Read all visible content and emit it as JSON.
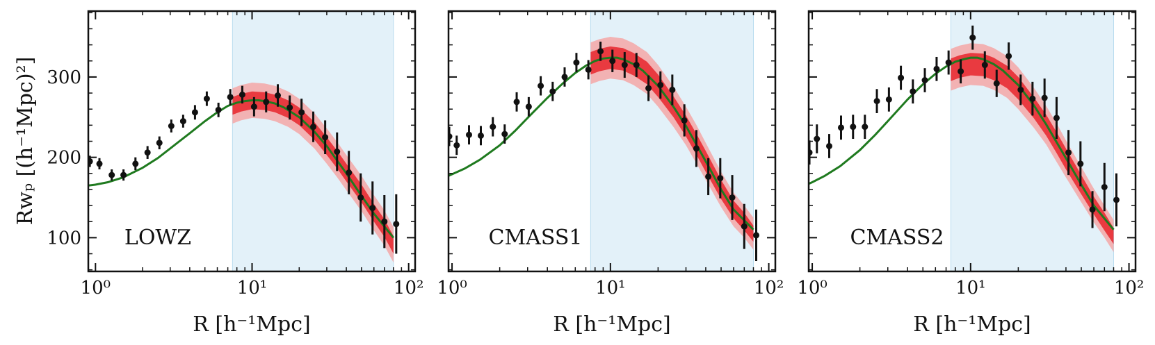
{
  "figure": {
    "ylabel": "Rwₚ [(h⁻¹Mpc)²]",
    "xlabel": "R [h⁻¹Mpc]"
  },
  "colors": {
    "axis": "#111111",
    "data": "#111111",
    "model_line": "#1f7a1f",
    "band_inner": "#e8252b",
    "band_outer": "#f5a7a7",
    "fit_region": "#e3f1f9"
  },
  "chart_data": [
    {
      "type": "scatter",
      "title": "LOWZ",
      "xscale": "log",
      "xlim": [
        0.9,
        110
      ],
      "ylim": [
        58,
        382
      ],
      "xticks": [
        1,
        10,
        100
      ],
      "xtick_labels": [
        "10⁰",
        "10¹",
        "10²"
      ],
      "yticks": [
        100,
        200,
        300
      ],
      "ytick_labels": [
        "100",
        "200",
        "300"
      ],
      "fit_range": [
        7.5,
        80
      ],
      "data_points": [
        {
          "x": 0.92,
          "y": 195,
          "err": 7
        },
        {
          "x": 1.06,
          "y": 192,
          "err": 7
        },
        {
          "x": 1.27,
          "y": 178,
          "err": 7
        },
        {
          "x": 1.51,
          "y": 178,
          "err": 7
        },
        {
          "x": 1.8,
          "y": 192,
          "err": 8
        },
        {
          "x": 2.15,
          "y": 206,
          "err": 8
        },
        {
          "x": 2.56,
          "y": 218,
          "err": 8
        },
        {
          "x": 3.05,
          "y": 239,
          "err": 8
        },
        {
          "x": 3.63,
          "y": 245,
          "err": 8
        },
        {
          "x": 4.32,
          "y": 256,
          "err": 9
        },
        {
          "x": 5.14,
          "y": 273,
          "err": 9
        },
        {
          "x": 6.1,
          "y": 259,
          "err": 9
        },
        {
          "x": 7.26,
          "y": 275,
          "err": 10
        },
        {
          "x": 8.66,
          "y": 278,
          "err": 11
        },
        {
          "x": 10.3,
          "y": 263,
          "err": 12
        },
        {
          "x": 12.3,
          "y": 269,
          "err": 13
        },
        {
          "x": 14.6,
          "y": 277,
          "err": 14
        },
        {
          "x": 17.4,
          "y": 262,
          "err": 15
        },
        {
          "x": 20.7,
          "y": 256,
          "err": 17
        },
        {
          "x": 24.6,
          "y": 238,
          "err": 19
        },
        {
          "x": 29.3,
          "y": 225,
          "err": 21
        },
        {
          "x": 34.9,
          "y": 207,
          "err": 24
        },
        {
          "x": 41.5,
          "y": 181,
          "err": 27
        },
        {
          "x": 49.4,
          "y": 150,
          "err": 30
        },
        {
          "x": 58.8,
          "y": 137,
          "err": 33
        },
        {
          "x": 70,
          "y": 120,
          "err": 33
        },
        {
          "x": 83.3,
          "y": 117,
          "err": 37
        }
      ],
      "model": {
        "label": "model",
        "x": [
          0.9,
          1.0,
          1.2,
          1.5,
          2.0,
          2.5,
          3.0,
          4.0,
          5.0,
          6.0,
          7.0,
          8.0,
          9.0,
          10.0,
          11.0,
          12.0,
          14.0,
          16.0,
          20.0,
          25.0,
          30.0,
          40.0,
          50.0,
          60.0,
          80.0
        ],
        "y": [
          165,
          166,
          169,
          175,
          187,
          199,
          211,
          230,
          245,
          256,
          264,
          268,
          270,
          271,
          271,
          270,
          267,
          262,
          250,
          232,
          214,
          180,
          152,
          130,
          100
        ]
      },
      "bands": {
        "x": [
          7.5,
          8.5,
          10.0,
          12.0,
          14.0,
          17.0,
          20.0,
          25.0,
          30.0,
          35.0,
          40.0,
          50.0,
          60.0,
          70.0,
          80.0
        ],
        "center": [
          264,
          268,
          271,
          270,
          267,
          260,
          251,
          233,
          214,
          197,
          181,
          155,
          131,
          112,
          91
        ],
        "inner_half_width": [
          11,
          11,
          11,
          11,
          11,
          11,
          11,
          11,
          11,
          11,
          11,
          11,
          11,
          11,
          11
        ],
        "outer_half_width": [
          22,
          22,
          22,
          22,
          22,
          22,
          22,
          22,
          22,
          22,
          22,
          22,
          22,
          22,
          22
        ]
      }
    },
    {
      "type": "scatter",
      "title": "CMASS1",
      "xscale": "log",
      "xlim": [
        0.95,
        110
      ],
      "ylim": [
        58,
        382
      ],
      "xticks": [
        1,
        10,
        100
      ],
      "xtick_labels": [
        "10⁰",
        "10¹",
        "10²"
      ],
      "yticks": [
        100,
        200,
        300
      ],
      "ytick_labels": [
        "100",
        "200",
        "300"
      ],
      "fit_range": [
        7.5,
        80
      ],
      "data_points": [
        {
          "x": 0.96,
          "y": 226,
          "err": 12
        },
        {
          "x": 1.07,
          "y": 215,
          "err": 12
        },
        {
          "x": 1.28,
          "y": 228,
          "err": 12
        },
        {
          "x": 1.52,
          "y": 227,
          "err": 12
        },
        {
          "x": 1.81,
          "y": 238,
          "err": 12
        },
        {
          "x": 2.15,
          "y": 229,
          "err": 12
        },
        {
          "x": 2.56,
          "y": 269,
          "err": 12
        },
        {
          "x": 3.05,
          "y": 263,
          "err": 12
        },
        {
          "x": 3.63,
          "y": 289,
          "err": 12
        },
        {
          "x": 4.32,
          "y": 282,
          "err": 12
        },
        {
          "x": 5.14,
          "y": 300,
          "err": 12
        },
        {
          "x": 6.1,
          "y": 318,
          "err": 12
        },
        {
          "x": 7.26,
          "y": 309,
          "err": 12
        },
        {
          "x": 8.66,
          "y": 332,
          "err": 12
        },
        {
          "x": 10.3,
          "y": 320,
          "err": 14
        },
        {
          "x": 12.3,
          "y": 315,
          "err": 16
        },
        {
          "x": 14.6,
          "y": 315,
          "err": 15
        },
        {
          "x": 17.4,
          "y": 286,
          "err": 16
        },
        {
          "x": 20.7,
          "y": 290,
          "err": 17
        },
        {
          "x": 24.6,
          "y": 284,
          "err": 19
        },
        {
          "x": 29.3,
          "y": 246,
          "err": 20
        },
        {
          "x": 34.9,
          "y": 211,
          "err": 23
        },
        {
          "x": 41.5,
          "y": 176,
          "err": 23
        },
        {
          "x": 49.4,
          "y": 174,
          "err": 25
        },
        {
          "x": 58.8,
          "y": 150,
          "err": 28
        },
        {
          "x": 70,
          "y": 114,
          "err": 28
        },
        {
          "x": 83.3,
          "y": 103,
          "err": 32
        }
      ],
      "model": {
        "label": "model",
        "x": [
          0.95,
          1.0,
          1.2,
          1.5,
          2.0,
          2.5,
          3.0,
          4.0,
          5.0,
          6.0,
          7.0,
          8.0,
          9.0,
          10.0,
          11.0,
          12.0,
          14.0,
          16.0,
          20.0,
          25.0,
          30.0,
          40.0,
          50.0,
          60.0,
          80.0
        ],
        "y": [
          177,
          179,
          186,
          197,
          215,
          233,
          249,
          274,
          292,
          305,
          314,
          320,
          323,
          324,
          324,
          322,
          316,
          308,
          289,
          263,
          239,
          195,
          160,
          135,
          110
        ]
      },
      "bands": {
        "x": [
          7.5,
          8.5,
          10.0,
          12.0,
          14.0,
          17.0,
          20.0,
          25.0,
          30.0,
          35.0,
          40.0,
          50.0,
          60.0,
          70.0,
          80.0
        ],
        "center": [
          317,
          321,
          324,
          322,
          316,
          305,
          289,
          263,
          239,
          216,
          195,
          160,
          135,
          120,
          105
        ],
        "inner_half_width": [
          14,
          14,
          14,
          14,
          14,
          14,
          14,
          13,
          13,
          13,
          13,
          12,
          11,
          11,
          10
        ],
        "outer_half_width": [
          26,
          26,
          26,
          26,
          26,
          26,
          26,
          25,
          24,
          24,
          23,
          22,
          21,
          20,
          20
        ]
      }
    },
    {
      "type": "scatter",
      "title": "CMASS2",
      "xscale": "log",
      "xlim": [
        0.95,
        110
      ],
      "ylim": [
        58,
        382
      ],
      "xticks": [
        1,
        10,
        100
      ],
      "xtick_labels": [
        "10⁰",
        "10¹",
        "10²"
      ],
      "yticks": [
        100,
        200,
        300
      ],
      "ytick_labels": [
        "100",
        "200",
        "300"
      ],
      "fit_range": [
        7.5,
        80
      ],
      "data_points": [
        {
          "x": 0.96,
          "y": 206,
          "err": 15
        },
        {
          "x": 1.07,
          "y": 223,
          "err": 18
        },
        {
          "x": 1.28,
          "y": 214,
          "err": 15
        },
        {
          "x": 1.52,
          "y": 237,
          "err": 15
        },
        {
          "x": 1.81,
          "y": 238,
          "err": 15
        },
        {
          "x": 2.15,
          "y": 238,
          "err": 15
        },
        {
          "x": 2.56,
          "y": 270,
          "err": 15
        },
        {
          "x": 3.05,
          "y": 272,
          "err": 15
        },
        {
          "x": 3.63,
          "y": 299,
          "err": 15
        },
        {
          "x": 4.32,
          "y": 282,
          "err": 15
        },
        {
          "x": 5.14,
          "y": 296,
          "err": 15
        },
        {
          "x": 6.1,
          "y": 310,
          "err": 15
        },
        {
          "x": 7.26,
          "y": 318,
          "err": 15
        },
        {
          "x": 8.66,
          "y": 307,
          "err": 15
        },
        {
          "x": 10.3,
          "y": 349,
          "err": 15
        },
        {
          "x": 12.3,
          "y": 315,
          "err": 17
        },
        {
          "x": 14.6,
          "y": 292,
          "err": 17
        },
        {
          "x": 17.4,
          "y": 326,
          "err": 17
        },
        {
          "x": 20.7,
          "y": 284,
          "err": 19
        },
        {
          "x": 24.6,
          "y": 273,
          "err": 21
        },
        {
          "x": 29.3,
          "y": 274,
          "err": 24
        },
        {
          "x": 34.9,
          "y": 249,
          "err": 26
        },
        {
          "x": 41.5,
          "y": 206,
          "err": 28
        },
        {
          "x": 49.4,
          "y": 192,
          "err": 28
        },
        {
          "x": 58.8,
          "y": 135,
          "err": 23
        },
        {
          "x": 70,
          "y": 163,
          "err": 30
        },
        {
          "x": 83.3,
          "y": 147,
          "err": 33
        }
      ],
      "model": {
        "label": "model",
        "x": [
          0.95,
          1.0,
          1.2,
          1.5,
          2.0,
          2.5,
          3.0,
          4.0,
          5.0,
          6.0,
          7.0,
          8.0,
          9.0,
          10.0,
          11.0,
          12.0,
          14.0,
          16.0,
          20.0,
          25.0,
          30.0,
          40.0,
          50.0,
          60.0,
          80.0
        ],
        "y": [
          167,
          169,
          177,
          189,
          209,
          228,
          245,
          272,
          291,
          304,
          313,
          319,
          322,
          324,
          324,
          322,
          316,
          308,
          290,
          265,
          241,
          199,
          166,
          140,
          110
        ]
      },
      "bands": {
        "x": [
          7.5,
          8.5,
          10.0,
          12.0,
          14.0,
          17.0,
          20.0,
          25.0,
          30.0,
          35.0,
          40.0,
          50.0,
          60.0,
          70.0,
          80.0
        ],
        "center": [
          309,
          313,
          316,
          315,
          310,
          300,
          286,
          262,
          240,
          218,
          198,
          166,
          140,
          120,
          102
        ],
        "inner_half_width": [
          14,
          14,
          14,
          14,
          14,
          14,
          14,
          13,
          13,
          13,
          13,
          12,
          11,
          11,
          10
        ],
        "outer_half_width": [
          26,
          26,
          26,
          26,
          26,
          26,
          26,
          25,
          24,
          24,
          23,
          22,
          21,
          20,
          20
        ]
      }
    }
  ]
}
